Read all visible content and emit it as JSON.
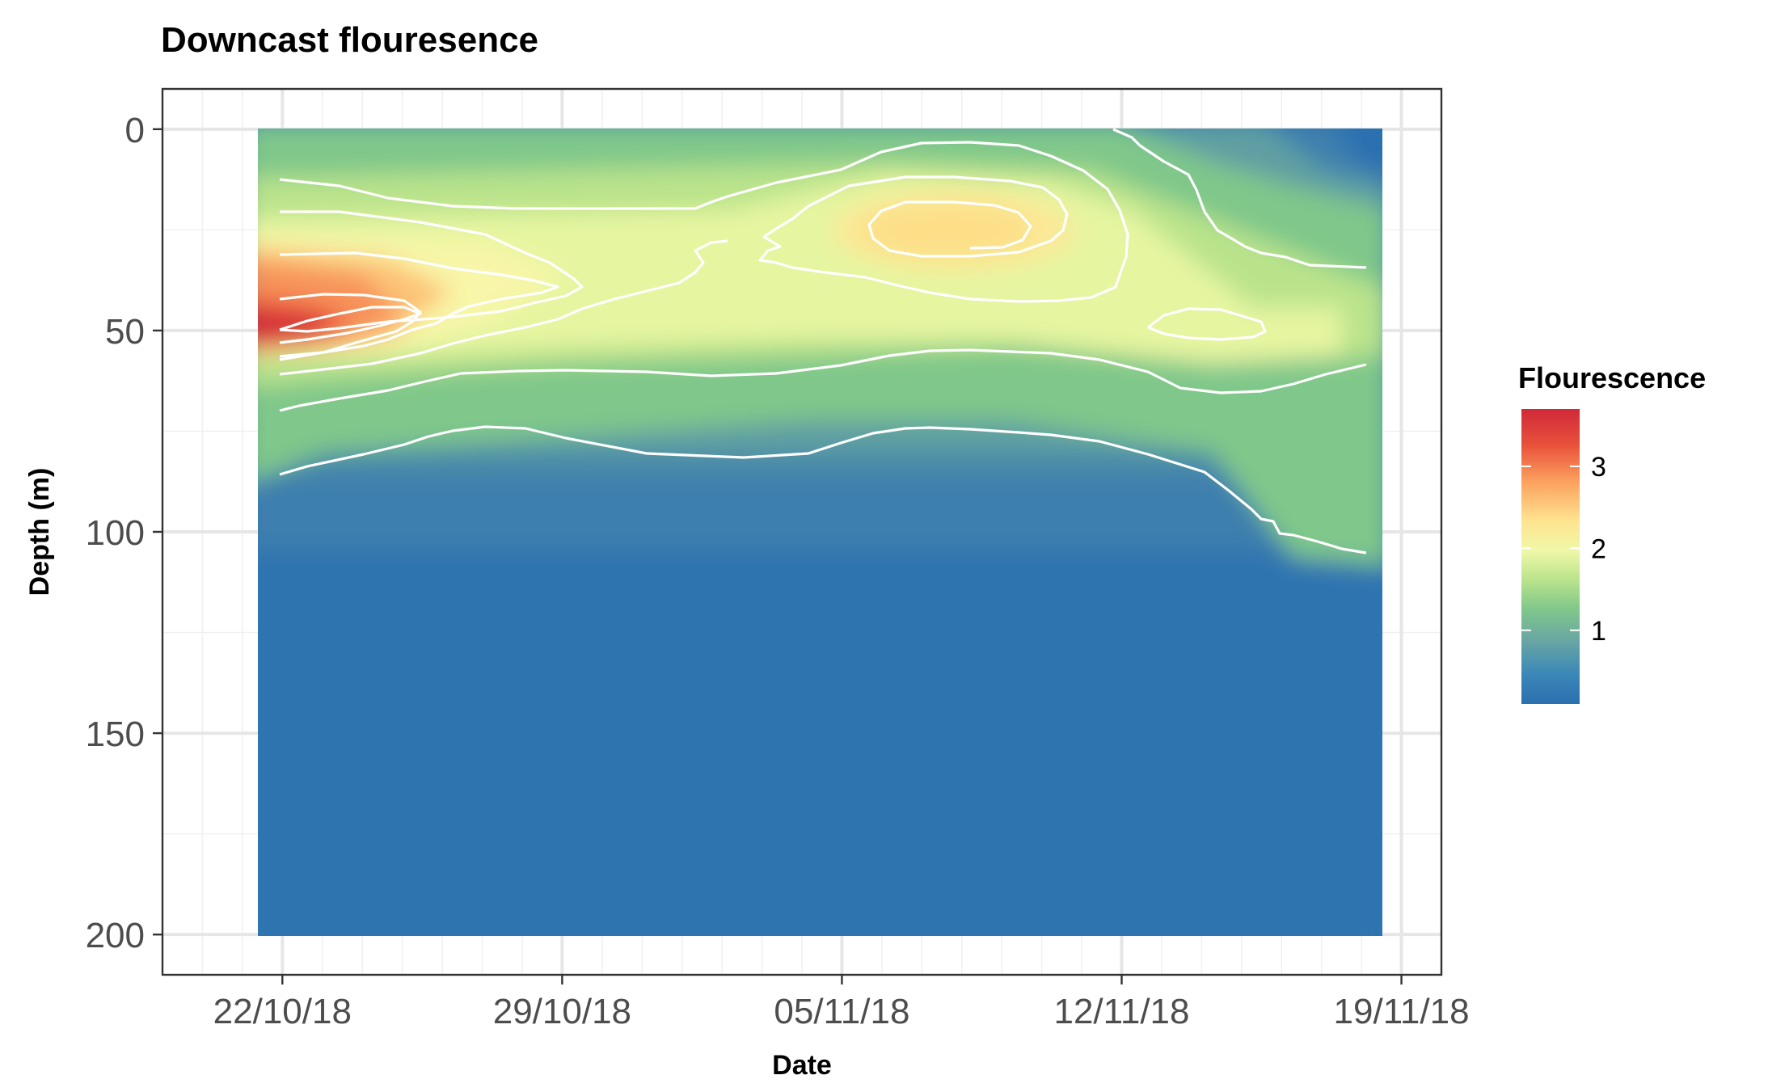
{
  "chart_data": {
    "type": "heatmap",
    "title": "Downcast flouresence",
    "xlabel": "Date",
    "ylabel": "Depth (m)",
    "x_ticks": [
      "22/10/18",
      "29/10/18",
      "05/11/18",
      "12/11/18",
      "19/11/18"
    ],
    "x_range": [
      "2018-10-19",
      "2018-11-20"
    ],
    "y_ticks": [
      0,
      50,
      100,
      150,
      200
    ],
    "y_range": [
      -10,
      210
    ],
    "y_reversed": true,
    "data_extent": {
      "x": [
        "2018-10-22",
        "2018-11-19"
      ],
      "y": [
        0,
        200
      ]
    },
    "legend": {
      "title": "Flourescence",
      "placement": "right",
      "ticks": [
        1,
        2,
        3
      ],
      "range": [
        0.1,
        3.7
      ],
      "palette": [
        "#2b6fb0",
        "#3b87b8",
        "#6aa8a2",
        "#7fc78a",
        "#b9e38b",
        "#f0f8a8",
        "#fee490",
        "#fca360",
        "#e8503a",
        "#d12939"
      ]
    },
    "grid": true,
    "field_description_sampled": {
      "columns": [
        "2018-10-22",
        "2018-10-24",
        "2018-10-26",
        "2018-10-29",
        "2018-11-01",
        "2018-11-05",
        "2018-11-08",
        "2018-11-10",
        "2018-11-12",
        "2018-11-14",
        "2018-11-16",
        "2018-11-18"
      ],
      "depths": [
        0,
        25,
        50,
        75,
        100,
        150,
        200
      ],
      "values": [
        [
          0.8,
          0.8,
          0.8,
          0.8,
          0.8,
          0.8,
          0.9,
          0.8,
          0.8,
          0.6,
          0.5,
          0.2
        ],
        [
          1.4,
          1.4,
          1.4,
          1.5,
          1.4,
          1.4,
          1.9,
          1.9,
          1.2,
          1.0,
          0.8,
          0.5
        ],
        [
          3.6,
          3.0,
          2.0,
          1.5,
          1.3,
          1.3,
          1.3,
          1.3,
          1.3,
          1.4,
          1.3,
          1.2
        ],
        [
          0.9,
          0.9,
          0.7,
          0.7,
          0.7,
          0.7,
          0.6,
          0.6,
          0.7,
          0.8,
          0.8,
          0.8
        ],
        [
          0.4,
          0.4,
          0.4,
          0.4,
          0.3,
          0.3,
          0.3,
          0.3,
          0.3,
          0.4,
          0.6,
          0.7
        ],
        [
          0.2,
          0.2,
          0.2,
          0.2,
          0.2,
          0.2,
          0.2,
          0.2,
          0.2,
          0.2,
          0.2,
          0.2
        ],
        [
          0.15,
          0.15,
          0.15,
          0.15,
          0.15,
          0.15,
          0.15,
          0.15,
          0.15,
          0.15,
          0.15,
          0.15
        ]
      ]
    },
    "contour_levels": [
      0.75,
      1.25,
      1.75,
      2.25
    ]
  }
}
